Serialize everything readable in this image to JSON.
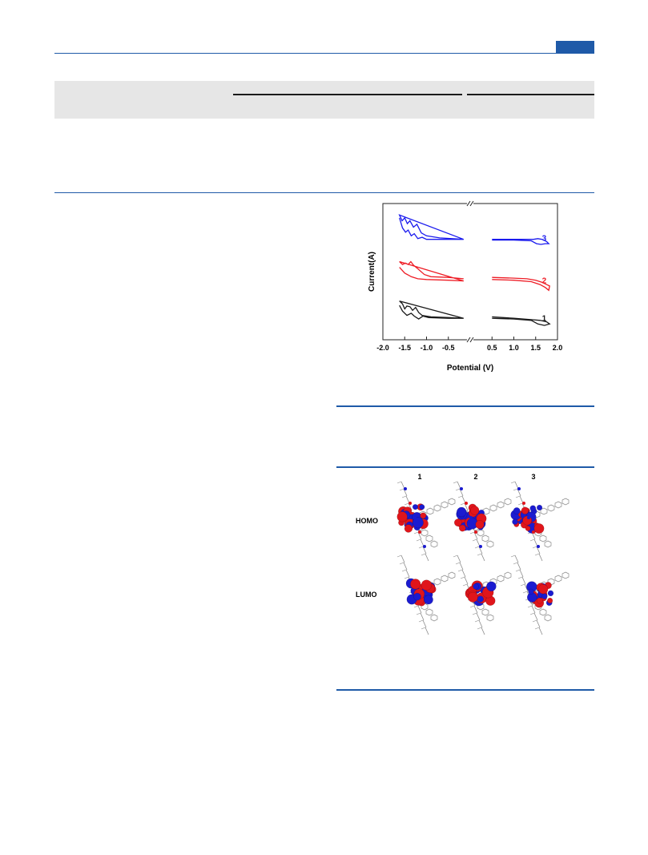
{
  "colors": {
    "accent_blue": "#1f5aa8",
    "table_band": "#e6e6e6",
    "series_1": "#1a1a1a",
    "series_2": "#ee1c25",
    "series_3": "#1a1aee",
    "orbital_positive": "#e0151b",
    "orbital_negative": "#1b1bd0"
  },
  "chart_data": [
    {
      "type": "line",
      "xlabel": "Potential (V)",
      "ylabel": "Current(A)",
      "xlim": [
        -2.0,
        2.0
      ],
      "x_ticks": [
        "-2.0",
        "-1.5",
        "-1.0",
        "-0.5",
        "0.5",
        "1.0",
        "1.5",
        "2.0"
      ],
      "axis_break": true,
      "series": [
        {
          "name": "1",
          "color": "#1a1a1a",
          "offset": 0.0,
          "upper": [
            [
              -1.62,
              0.24
            ],
            [
              -1.55,
              0.2
            ],
            [
              -1.5,
              0.13
            ],
            [
              -1.45,
              0.17
            ],
            [
              -1.38,
              0.16
            ],
            [
              -1.32,
              0.11
            ],
            [
              -1.25,
              0.15
            ],
            [
              -1.18,
              0.08
            ],
            [
              -1.1,
              0.04
            ],
            [
              -0.9,
              0.02
            ],
            [
              -0.5,
              0.01
            ],
            [
              -0.15,
              0.0
            ],
            [
              0.1,
              0.03
            ],
            [
              0.5,
              0.02
            ],
            [
              1.0,
              0.0
            ],
            [
              1.4,
              -0.02
            ],
            [
              1.6,
              -0.03
            ],
            [
              1.75,
              -0.05
            ],
            [
              1.82,
              -0.08
            ]
          ],
          "lower": [
            [
              -1.62,
              0.18
            ],
            [
              -1.55,
              0.1
            ],
            [
              -1.45,
              0.04
            ],
            [
              -1.35,
              0.07
            ],
            [
              -1.28,
              0.03
            ],
            [
              -1.18,
              -0.01
            ],
            [
              -1.08,
              0.03
            ],
            [
              -0.95,
              0.01
            ],
            [
              -0.5,
              0.0
            ],
            [
              -0.15,
              0.0
            ],
            [
              0.1,
              0.02
            ],
            [
              0.5,
              0.0
            ],
            [
              1.0,
              -0.01
            ],
            [
              1.4,
              -0.03
            ],
            [
              1.55,
              -0.08
            ],
            [
              1.7,
              -0.1
            ],
            [
              1.82,
              -0.08
            ]
          ]
        },
        {
          "name": "2",
          "color": "#ee1c25",
          "offset": 0.55,
          "upper": [
            [
              -1.62,
              0.24
            ],
            [
              -1.55,
              0.2
            ],
            [
              -1.48,
              0.22
            ],
            [
              -1.42,
              0.2
            ],
            [
              -1.36,
              0.24
            ],
            [
              -1.3,
              0.19
            ],
            [
              -1.2,
              0.14
            ],
            [
              -1.05,
              0.06
            ],
            [
              -0.9,
              0.03
            ],
            [
              -0.5,
              0.02
            ],
            [
              -0.15,
              0.0
            ],
            [
              0.1,
              0.03
            ],
            [
              0.5,
              0.02
            ],
            [
              1.0,
              0.01
            ],
            [
              1.3,
              0.0
            ],
            [
              1.5,
              -0.02
            ],
            [
              1.65,
              -0.05
            ],
            [
              1.75,
              -0.08
            ],
            [
              1.82,
              -0.1
            ]
          ],
          "lower": [
            [
              -1.62,
              0.16
            ],
            [
              -1.5,
              0.08
            ],
            [
              -1.35,
              0.03
            ],
            [
              -1.2,
              0.0
            ],
            [
              -1.0,
              -0.01
            ],
            [
              -0.5,
              -0.02
            ],
            [
              -0.15,
              -0.03
            ],
            [
              0.1,
              0.01
            ],
            [
              0.5,
              -0.01
            ],
            [
              1.0,
              -0.02
            ],
            [
              1.4,
              -0.04
            ],
            [
              1.6,
              -0.08
            ],
            [
              1.72,
              -0.12
            ],
            [
              1.8,
              -0.16
            ],
            [
              1.82,
              -0.1
            ]
          ]
        },
        {
          "name": "3",
          "color": "#1a1aee",
          "offset": 1.1,
          "upper": [
            [
              -1.62,
              0.34
            ],
            [
              -1.56,
              0.26
            ],
            [
              -1.5,
              0.3
            ],
            [
              -1.44,
              0.22
            ],
            [
              -1.38,
              0.26
            ],
            [
              -1.3,
              0.17
            ],
            [
              -1.22,
              0.21
            ],
            [
              -1.12,
              0.09
            ],
            [
              -1.0,
              0.05
            ],
            [
              -0.7,
              0.02
            ],
            [
              -0.15,
              0.0
            ],
            [
              0.1,
              0.01
            ],
            [
              0.5,
              0.0
            ],
            [
              1.0,
              0.0
            ],
            [
              1.3,
              0.0
            ],
            [
              1.45,
              0.0
            ],
            [
              1.55,
              0.01
            ],
            [
              1.65,
              0.0
            ],
            [
              1.75,
              -0.03
            ],
            [
              1.8,
              -0.06
            ]
          ],
          "lower": [
            [
              -1.62,
              0.3
            ],
            [
              -1.55,
              0.16
            ],
            [
              -1.48,
              0.1
            ],
            [
              -1.42,
              0.13
            ],
            [
              -1.35,
              0.05
            ],
            [
              -1.28,
              0.08
            ],
            [
              -1.2,
              0.01
            ],
            [
              -1.1,
              0.03
            ],
            [
              -1.0,
              0.0
            ],
            [
              -0.5,
              0.0
            ],
            [
              -0.15,
              0.0
            ],
            [
              0.1,
              0.0
            ],
            [
              0.5,
              -0.01
            ],
            [
              1.0,
              -0.01
            ],
            [
              1.4,
              -0.02
            ],
            [
              1.52,
              -0.06
            ],
            [
              1.62,
              -0.07
            ],
            [
              1.72,
              -0.06
            ],
            [
              1.8,
              -0.06
            ]
          ]
        }
      ]
    }
  ],
  "orbital_figure": {
    "columns": [
      "1",
      "2",
      "3"
    ],
    "rows": [
      "HOMO",
      "LUMO"
    ]
  }
}
